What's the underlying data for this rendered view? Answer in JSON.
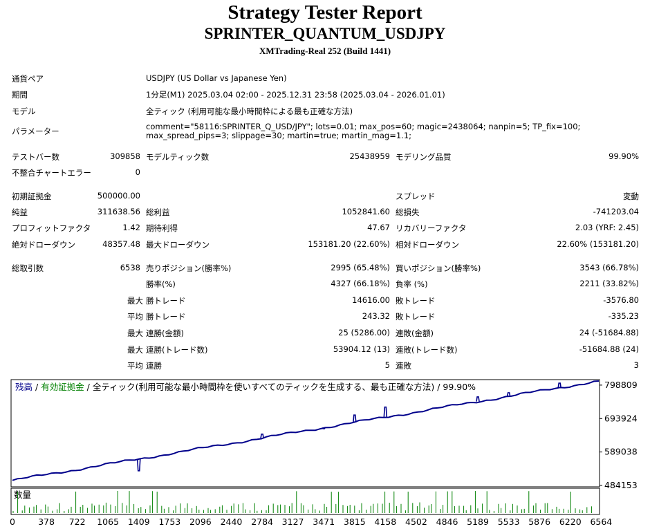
{
  "report": {
    "title": "Strategy Tester Report",
    "subtitle": "SPRINTER_QUANTUM_USDJPY",
    "server": "XMTrading-Real 252 (Build 1441)"
  },
  "info": {
    "pair_label": "通貨ペア",
    "pair_value": "USDJPY (US Dollar vs Japanese Yen)",
    "period_label": "期間",
    "period_value": "1分足(M1) 2025.03.04 02:00 - 2025.12.31 23:58 (2025.03.04 - 2026.01.01)",
    "model_label": "モデル",
    "model_value": "全ティック (利用可能な最小時間枠による最も正確な方法)",
    "params_label": "パラメーター",
    "params_value": "comment=\"58116:SPRINTER_Q_USD/JPY\"; lots=0.01; max_pos=60; magic=2438064; nanpin=5; TP_fix=100; max_spread_pips=3; slippage=30; martin=true; martin_mag=1.1;"
  },
  "stats": {
    "bars_label": "テストバー数",
    "bars_value": "309858",
    "ticks_label": "モデルティック数",
    "ticks_value": "25438959",
    "quality_label": "モデリング品質",
    "quality_value": "99.90%",
    "mismatch_label": "不整合チャートエラー",
    "mismatch_value": "0",
    "deposit_label": "初期証拠金",
    "deposit_value": "500000.00",
    "spread_label": "スプレッド",
    "spread_value": "変動",
    "net_label": "純益",
    "net_value": "311638.56",
    "gross_profit_label": "総利益",
    "gross_profit_value": "1052841.60",
    "gross_loss_label": "総損失",
    "gross_loss_value": "-741203.04",
    "pf_label": "プロフィットファクタ",
    "pf_value": "1.42",
    "expected_label": "期待利得",
    "expected_value": "47.67",
    "recovery_label": "リカバリーファクタ",
    "recovery_value": "2.03 (YRF: 2.45)",
    "abs_dd_label": "絶対ドローダウン",
    "abs_dd_value": "48357.48",
    "max_dd_label": "最大ドローダウン",
    "max_dd_value": "153181.20 (22.60%)",
    "rel_dd_label": "相対ドローダウン",
    "rel_dd_value": "22.60% (153181.20)",
    "total_trades_label": "総取引数",
    "total_trades_value": "6538",
    "short_label": "売りポジション(勝率%)",
    "short_value": "2995 (65.48%)",
    "long_label": "買いポジション(勝率%)",
    "long_value": "3543 (66.78%)",
    "win_rate_label": "勝率(%)",
    "win_rate_value": "4327 (66.18%)",
    "loss_rate_label": "負率 (%)",
    "loss_rate_value": "2211 (33.82%)",
    "max_label_1": "最大",
    "max_win_label": "勝トレード",
    "max_win_value": "14616.00",
    "max_loss_label": "敗トレード",
    "max_loss_value": "-3576.80",
    "avg_label_1": "平均",
    "avg_win_label": "勝トレード",
    "avg_win_value": "243.32",
    "avg_loss_label": "敗トレード",
    "avg_loss_value": "-335.23",
    "max_label_2": "最大",
    "consec_win_amt_label": "連勝(金額)",
    "consec_win_amt_value": "25 (5286.00)",
    "consec_loss_amt_label": "連敗(金額)",
    "consec_loss_amt_value": "24 (-51684.88)",
    "max_label_3": "最大",
    "consec_win_trades_label": "連勝(トレード数)",
    "consec_win_trades_value": "53904.12 (13)",
    "consec_loss_trades_label": "連敗(トレード数)",
    "consec_loss_trades_value": "-51684.88 (24)",
    "avg_label_2": "平均",
    "avg_consec_win_label": "連勝",
    "avg_consec_win_value": "5",
    "avg_consec_loss_label": "連敗",
    "avg_consec_loss_value": "3"
  },
  "chart_data": {
    "type": "line",
    "legend_balance": "残高",
    "legend_sep": " / ",
    "legend_equity": "有効証拠金",
    "legend_rest": " / 全ティック(利用可能な最小時間枠を使いすべてのティックを生成する、最も正確な方法) / 99.90%",
    "balance_color": "#00008b",
    "equity_color": "#008000",
    "volume_label": "数量",
    "y_ticks": [
      "798809",
      "693924",
      "589038",
      "484153"
    ],
    "x_ticks": [
      "0",
      "378",
      "722",
      "1065",
      "1409",
      "1753",
      "2096",
      "2440",
      "2784",
      "3127",
      "3471",
      "3815",
      "4158",
      "4502",
      "4846",
      "5189",
      "5533",
      "5876",
      "6220",
      "6564"
    ],
    "x_range": [
      0,
      6538
    ],
    "y_range": [
      484153,
      811638.56
    ],
    "balance_start": 500000,
    "balance_end": 811638.56,
    "equity_spikes": [
      {
        "x": 1409,
        "y": 530000
      },
      {
        "x": 2784,
        "y": 645000
      },
      {
        "x": 3471,
        "y": 662000
      },
      {
        "x": 3815,
        "y": 705000
      },
      {
        "x": 4158,
        "y": 730000
      },
      {
        "x": 5189,
        "y": 762000
      },
      {
        "x": 5533,
        "y": 775000
      },
      {
        "x": 6100,
        "y": 805000
      }
    ]
  }
}
